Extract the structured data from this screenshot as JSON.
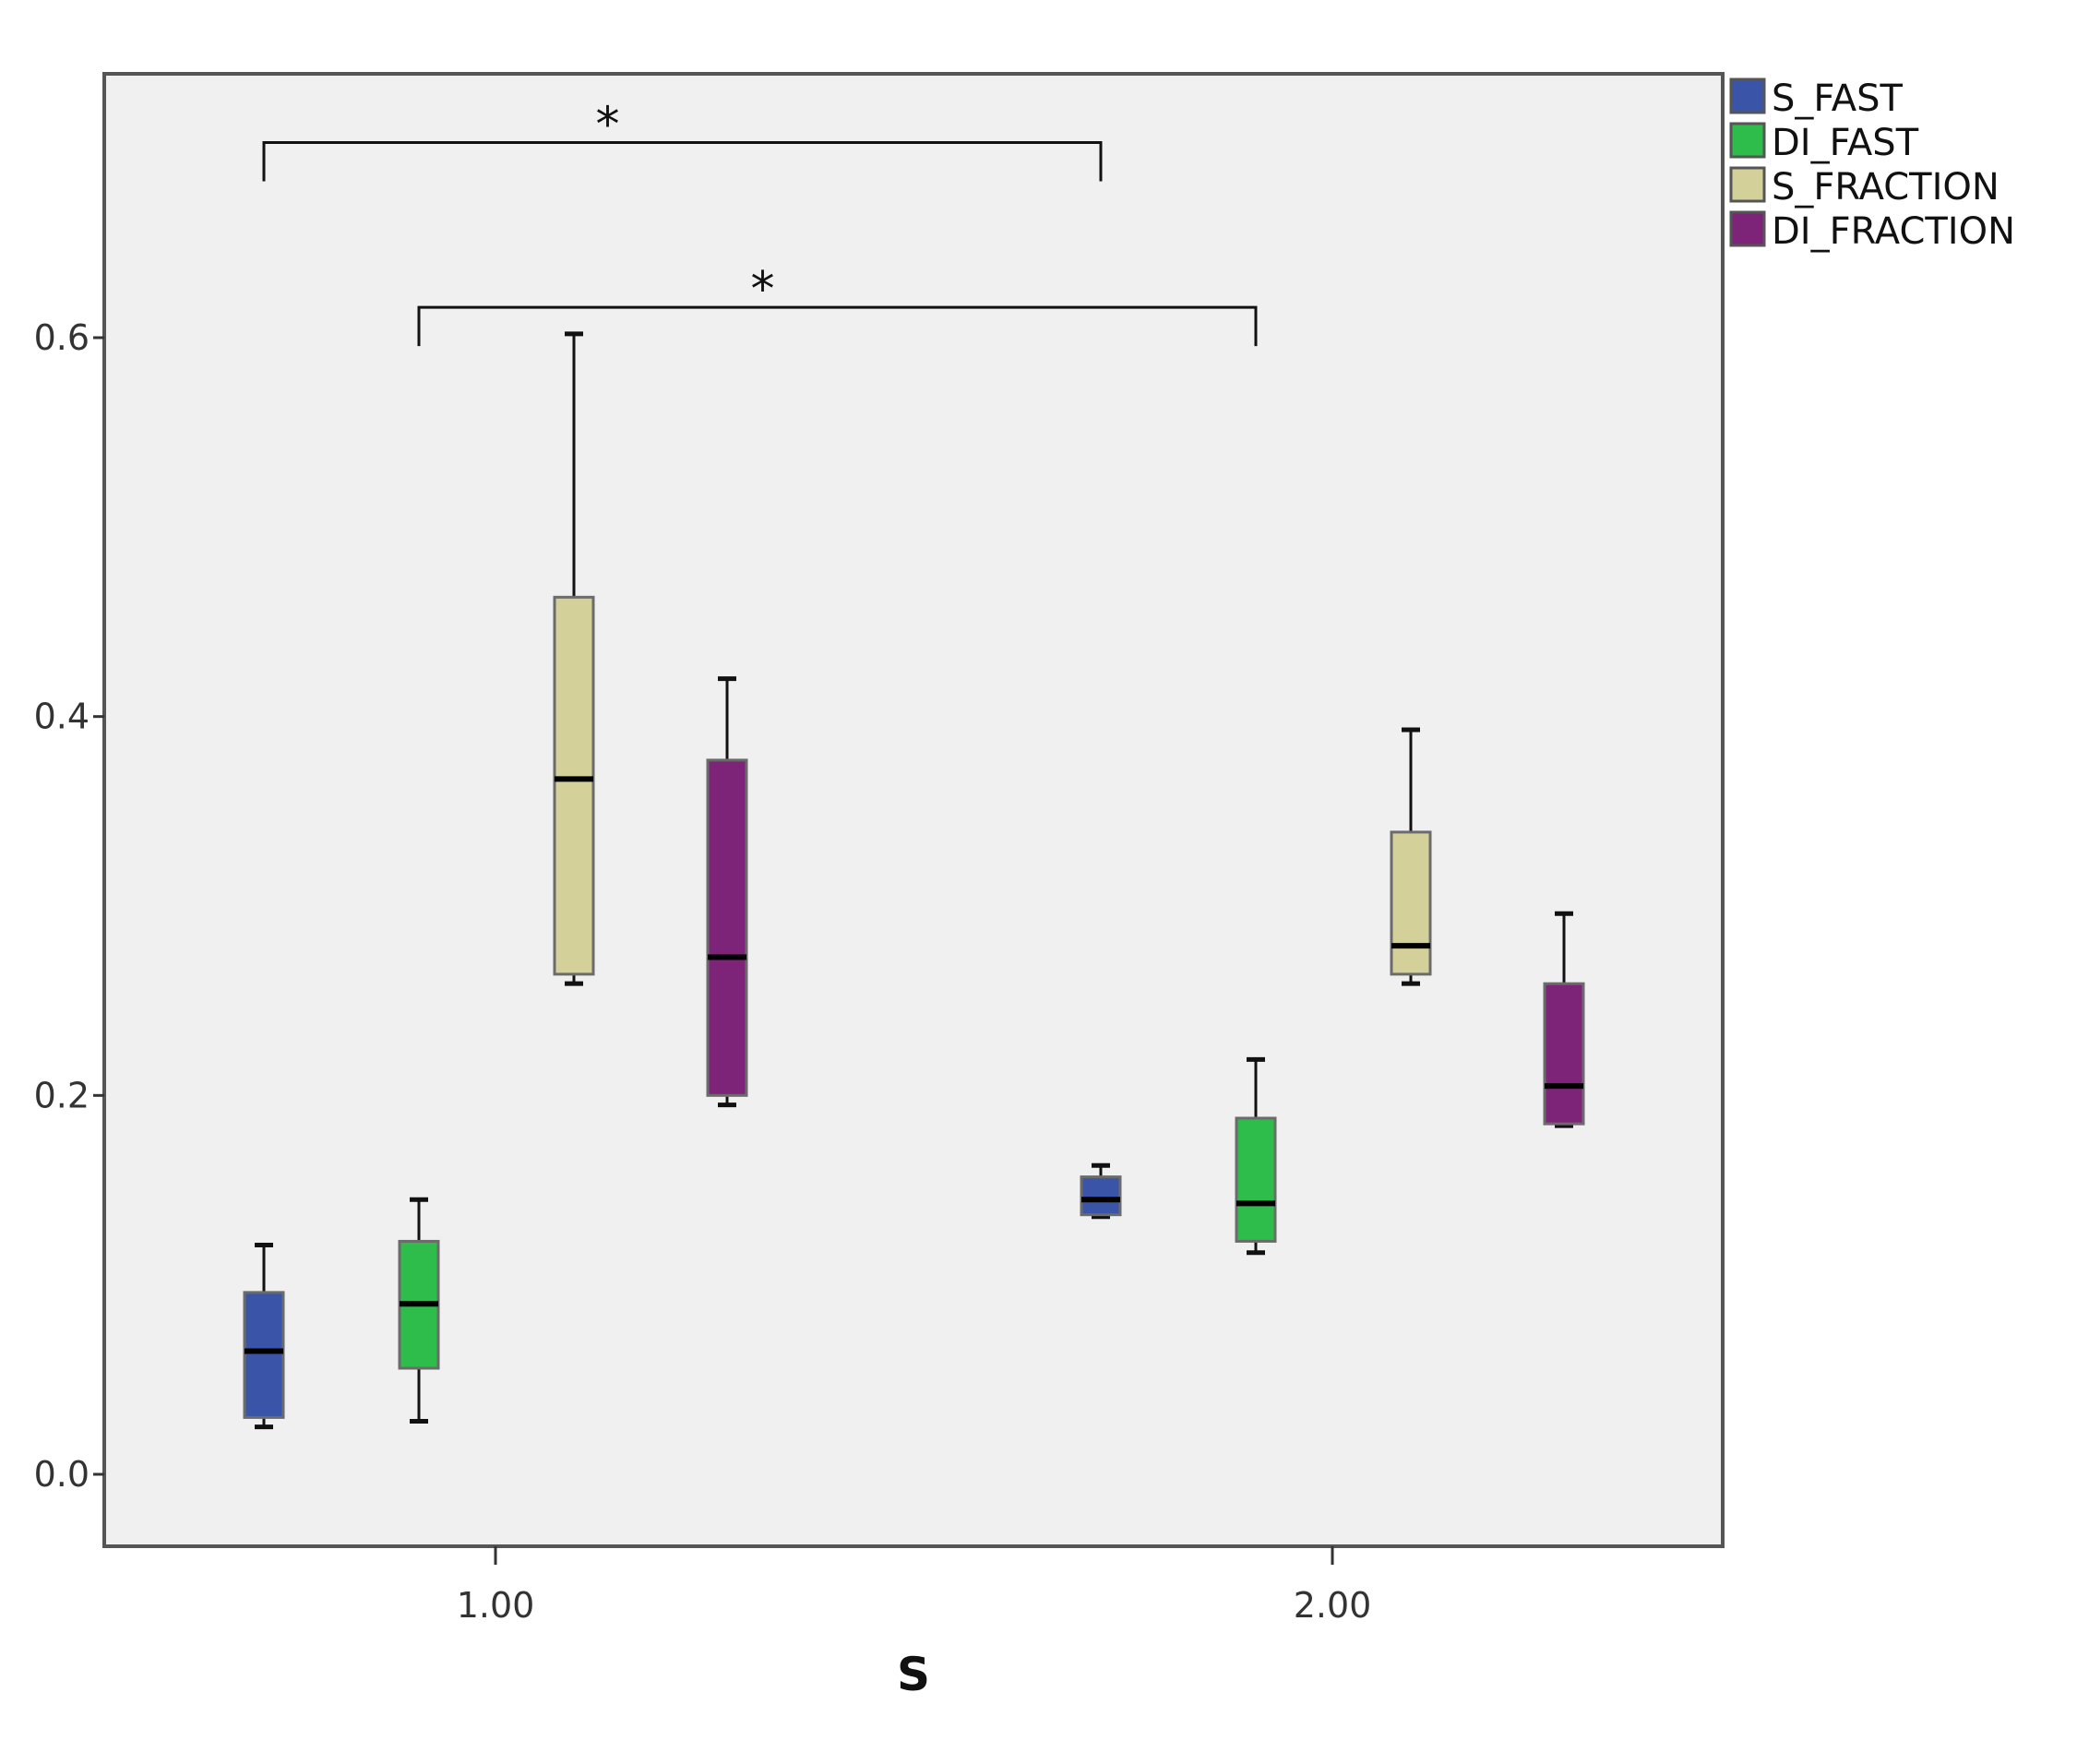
{
  "chart_data": {
    "type": "boxplot",
    "xlabel": "S",
    "ylabel": "",
    "categories": [
      "1.00",
      "2.00"
    ],
    "ylim": [
      -0.038,
      0.74
    ],
    "yticks": [
      "0.0",
      "0.2",
      "0.4",
      "0.6"
    ],
    "legend_position": "right-outside-top",
    "grid": false,
    "plot_background": "#f0f0f0",
    "series": [
      {
        "name": "S_FAST",
        "color": "#3a55a8",
        "boxes": [
          {
            "category": "1.00",
            "min": 0.025,
            "q1": 0.03,
            "median": 0.065,
            "q3": 0.096,
            "max": 0.121
          },
          {
            "category": "2.00",
            "min": 0.136,
            "q1": 0.137,
            "median": 0.145,
            "q3": 0.157,
            "max": 0.163
          }
        ]
      },
      {
        "name": "DI_FAST",
        "color": "#2ebc4a",
        "boxes": [
          {
            "category": "1.00",
            "min": 0.028,
            "q1": 0.056,
            "median": 0.09,
            "q3": 0.123,
            "max": 0.145
          },
          {
            "category": "2.00",
            "min": 0.117,
            "q1": 0.123,
            "median": 0.143,
            "q3": 0.188,
            "max": 0.219
          }
        ]
      },
      {
        "name": "S_FRACTION",
        "color": "#d4d09a",
        "boxes": [
          {
            "category": "1.00",
            "min": 0.259,
            "q1": 0.264,
            "median": 0.367,
            "q3": 0.463,
            "max": 0.602
          },
          {
            "category": "2.00",
            "min": 0.259,
            "q1": 0.264,
            "median": 0.279,
            "q3": 0.339,
            "max": 0.393
          }
        ]
      },
      {
        "name": "DI_FRACTION",
        "color": "#7d2478",
        "boxes": [
          {
            "category": "1.00",
            "min": 0.195,
            "q1": 0.2,
            "median": 0.273,
            "q3": 0.377,
            "max": 0.42
          },
          {
            "category": "2.00",
            "min": 0.184,
            "q1": 0.185,
            "median": 0.205,
            "q3": 0.259,
            "max": 0.296
          }
        ]
      }
    ],
    "annotations": [
      {
        "text": "*",
        "from": {
          "category": "1.00",
          "series": "S_FAST"
        },
        "to": {
          "category": "2.00",
          "series": "S_FAST"
        },
        "level": 0.703
      },
      {
        "text": "*",
        "from": {
          "category": "1.00",
          "series": "DI_FAST"
        },
        "to": {
          "category": "2.00",
          "series": "DI_FAST"
        },
        "level": 0.616
      }
    ]
  }
}
